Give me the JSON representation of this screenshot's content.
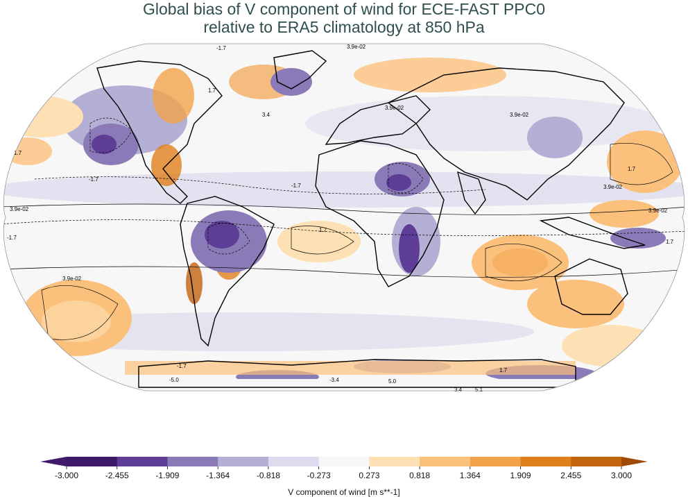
{
  "title": {
    "line1": "Global bias of V component of wind for ECE-FAST PPC0",
    "line2": "relative to ERA5 climatology at 850 hPa"
  },
  "colorbar": {
    "label": "V component of wind [m s**-1]",
    "ticks": [
      "-3.000",
      "-2.455",
      "-1.909",
      "-1.364",
      "-0.818",
      "-0.273",
      "0.273",
      "0.818",
      "1.364",
      "1.909",
      "2.455",
      "3.000"
    ],
    "colors": [
      "#3f1a6b",
      "#5e3d96",
      "#8b7ab8",
      "#b4afd4",
      "#dcdcee",
      "#f7f7f7",
      "#fde0b3",
      "#fbc17c",
      "#f2a24a",
      "#de7f1c",
      "#c2630e",
      "#a14a05"
    ],
    "extend": "both"
  },
  "contour_labels": [
    "-1.7",
    "3.9e-02",
    "1.7",
    "3.4",
    "-3.4",
    "-5.0",
    "5.0",
    "5.1",
    "3.9e-02",
    "-1.7",
    "1.7",
    "3.4"
  ],
  "map": {
    "projection": "robinson",
    "ocean_base_color": "#f7f7f7"
  }
}
